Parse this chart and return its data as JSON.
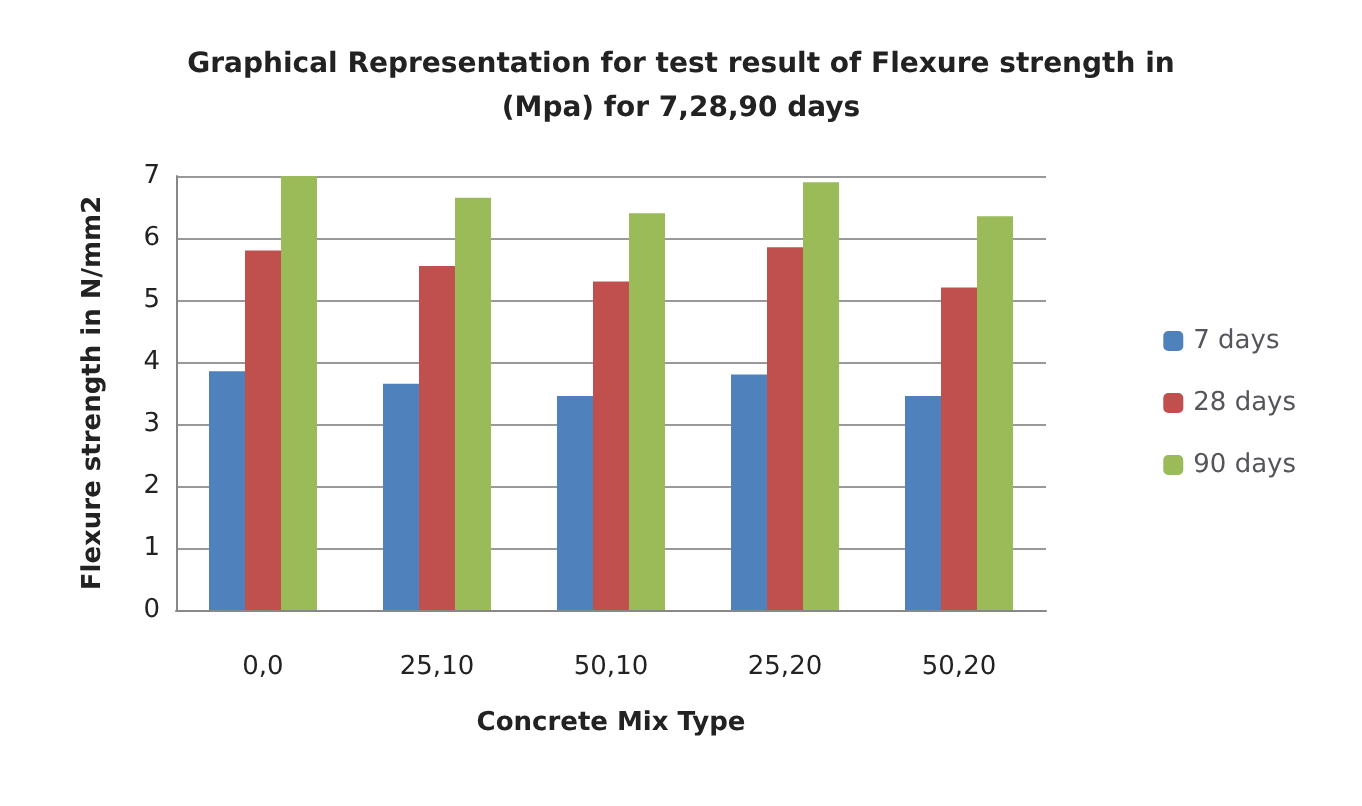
{
  "chart_data": {
    "type": "bar",
    "title": "Graphical Representation for test result of Flexure strength in\n(Mpa) for 7,28,90 days",
    "xlabel": "Concrete Mix Type",
    "ylabel": "Flexure strength in N/mm2",
    "categories": [
      "0,0",
      "25,10",
      "50,10",
      "25,20",
      "50,20"
    ],
    "series": [
      {
        "name": "7 days",
        "color": "#4f81bd",
        "values": [
          3.85,
          3.65,
          3.45,
          3.8,
          3.45
        ]
      },
      {
        "name": "28 days",
        "color": "#c0504d",
        "values": [
          5.8,
          5.55,
          5.3,
          5.85,
          5.2
        ]
      },
      {
        "name": "90 days",
        "color": "#9bbb59",
        "values": [
          7.0,
          6.65,
          6.4,
          6.9,
          6.35
        ]
      }
    ],
    "ylim": [
      0,
      7
    ],
    "yticks": [
      0,
      1,
      2,
      3,
      4,
      5,
      6,
      7
    ],
    "grid": "y",
    "legend": "right"
  }
}
